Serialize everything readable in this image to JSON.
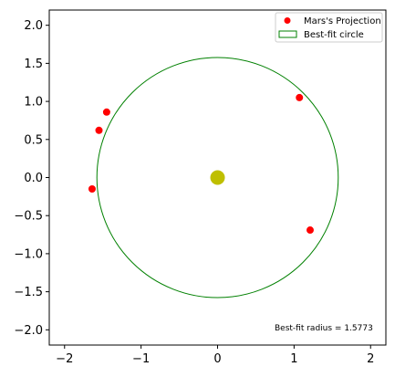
{
  "chart_data": {
    "type": "scatter",
    "title": "",
    "xlabel": "",
    "ylabel": "",
    "xlim": [
      -2.2,
      2.2
    ],
    "ylim": [
      -2.2,
      2.2
    ],
    "xticks": [
      -2,
      -1,
      0,
      1,
      2
    ],
    "yticks": [
      -2.0,
      -1.5,
      -1.0,
      -0.5,
      0.0,
      0.5,
      1.0,
      1.5,
      2.0
    ],
    "xtick_labels": [
      "−2",
      "−1",
      "0",
      "1",
      "2"
    ],
    "ytick_labels": [
      "−2.0",
      "−1.5",
      "−1.0",
      "−0.5",
      "0.0",
      "0.5",
      "1.0",
      "1.5",
      "2.0"
    ],
    "grid": false,
    "legend_position": "top-right",
    "series": [
      {
        "name": "Mars's Projection",
        "kind": "points",
        "color": "#ff0000",
        "points": [
          {
            "x": 1.07,
            "y": 1.05
          },
          {
            "x": -1.45,
            "y": 0.86
          },
          {
            "x": -1.55,
            "y": 0.62
          },
          {
            "x": -1.64,
            "y": -0.15
          },
          {
            "x": 1.21,
            "y": -0.69
          }
        ]
      },
      {
        "name": "Best-fit circle",
        "kind": "circle",
        "color": "#008000",
        "center": {
          "x": 0,
          "y": 0
        },
        "radius": 1.5773
      }
    ],
    "center_marker": {
      "x": 0,
      "y": 0,
      "color": "#bfbf00"
    },
    "annotation": "Best-fit radius = 1.5773"
  }
}
